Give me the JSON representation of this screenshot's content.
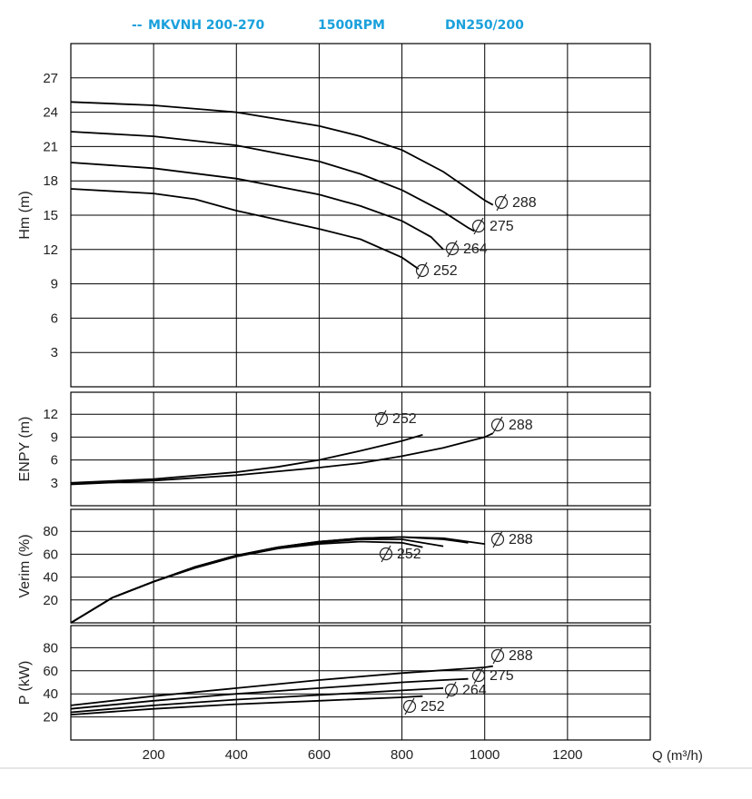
{
  "header": {
    "prefix": "--",
    "model": "MKVNH 200-270",
    "speed": "1500RPM",
    "size": "DN250/200"
  },
  "chart_data": [
    {
      "type": "line",
      "panel": "head",
      "ylabel": "Hm (m)",
      "xlim": [
        0,
        1400
      ],
      "ylim": [
        0,
        30
      ],
      "yticks": [
        "3",
        "6",
        "9",
        "12",
        "15",
        "18",
        "21",
        "24",
        "27"
      ],
      "series": [
        {
          "name": "288",
          "x": [
            0,
            200,
            400,
            600,
            700,
            800,
            900,
            1000,
            1020
          ],
          "y": [
            24.9,
            24.6,
            24.0,
            22.8,
            21.9,
            20.7,
            18.8,
            16.3,
            15.9
          ]
        },
        {
          "name": "275",
          "x": [
            0,
            200,
            400,
            600,
            700,
            800,
            900,
            960,
            975
          ],
          "y": [
            22.3,
            21.9,
            21.1,
            19.7,
            18.6,
            17.2,
            15.3,
            13.9,
            13.6
          ]
        },
        {
          "name": "264",
          "x": [
            0,
            200,
            400,
            600,
            700,
            800,
            870,
            900
          ],
          "y": [
            19.6,
            19.1,
            18.2,
            16.8,
            15.8,
            14.5,
            13.1,
            12.0
          ]
        },
        {
          "name": "252",
          "x": [
            0,
            200,
            300,
            400,
            600,
            700,
            800,
            840
          ],
          "y": [
            17.3,
            16.9,
            16.4,
            15.4,
            13.8,
            12.9,
            11.3,
            10.3
          ]
        }
      ],
      "labels": [
        "288",
        "275",
        "264",
        "252"
      ]
    },
    {
      "type": "line",
      "panel": "npsh",
      "ylabel": "ENPY (m)",
      "xlim": [
        0,
        1400
      ],
      "ylim": [
        0,
        15
      ],
      "yticks": [
        "3",
        "6",
        "9",
        "12"
      ],
      "series": [
        {
          "name": "252",
          "x": [
            0,
            200,
            400,
            500,
            600,
            700,
            800,
            850
          ],
          "y": [
            3.0,
            3.5,
            4.4,
            5.1,
            6.0,
            7.2,
            8.5,
            9.3
          ]
        },
        {
          "name": "288",
          "x": [
            0,
            200,
            400,
            600,
            700,
            800,
            900,
            1000,
            1020
          ],
          "y": [
            2.8,
            3.3,
            4.0,
            5.0,
            5.6,
            6.5,
            7.6,
            9.0,
            9.5
          ]
        }
      ],
      "labels": [
        "252",
        "288"
      ]
    },
    {
      "type": "line",
      "panel": "efficiency",
      "ylabel": "Verim (%)",
      "xlim": [
        0,
        1400
      ],
      "ylim": [
        0,
        95
      ],
      "yticks": [
        "20",
        "40",
        "60",
        "80"
      ],
      "series": [
        {
          "name": "288",
          "x": [
            0,
            100,
            200,
            300,
            400,
            500,
            600,
            700,
            800,
            900,
            1000
          ],
          "y": [
            0,
            22,
            36,
            49,
            59,
            66,
            71,
            74,
            75,
            74,
            69
          ]
        },
        {
          "name": "275",
          "x": [
            0,
            100,
            200,
            300,
            400,
            500,
            600,
            700,
            800,
            900,
            960
          ],
          "y": [
            0,
            22,
            36,
            49,
            59,
            66,
            71,
            74,
            75,
            73,
            70
          ]
        },
        {
          "name": "264",
          "x": [
            0,
            100,
            200,
            300,
            400,
            500,
            600,
            700,
            800,
            900
          ],
          "y": [
            0,
            22,
            36,
            48,
            58,
            65,
            70,
            73,
            73,
            67
          ]
        },
        {
          "name": "252",
          "x": [
            0,
            100,
            200,
            300,
            400,
            500,
            600,
            700,
            800,
            850
          ],
          "y": [
            0,
            22,
            36,
            48,
            58,
            65,
            69,
            71,
            70,
            66
          ]
        }
      ],
      "labels": [
        "288",
        "252"
      ]
    },
    {
      "type": "line",
      "panel": "power",
      "ylabel": "P (kW)",
      "xlim": [
        0,
        1400
      ],
      "ylim": [
        0,
        95
      ],
      "yticks": [
        "20",
        "40",
        "60",
        "80"
      ],
      "xticks": [
        "200",
        "400",
        "600",
        "800",
        "1000",
        "1200"
      ],
      "xlabel": "Q (m³/h)",
      "series": [
        {
          "name": "288",
          "x": [
            0,
            200,
            400,
            600,
            800,
            1000,
            1020
          ],
          "y": [
            30,
            38,
            45,
            52,
            58,
            63,
            64
          ]
        },
        {
          "name": "275",
          "x": [
            0,
            200,
            400,
            600,
            800,
            900,
            960
          ],
          "y": [
            27,
            34,
            40,
            45,
            50,
            52,
            53
          ]
        },
        {
          "name": "264",
          "x": [
            0,
            200,
            400,
            600,
            800,
            900
          ],
          "y": [
            24,
            30,
            35,
            39,
            43,
            45
          ]
        },
        {
          "name": "252",
          "x": [
            0,
            200,
            400,
            600,
            800,
            850
          ],
          "y": [
            22,
            27,
            31,
            34,
            37,
            38
          ]
        }
      ],
      "labels": [
        "288",
        "275",
        "264",
        "252"
      ]
    }
  ]
}
